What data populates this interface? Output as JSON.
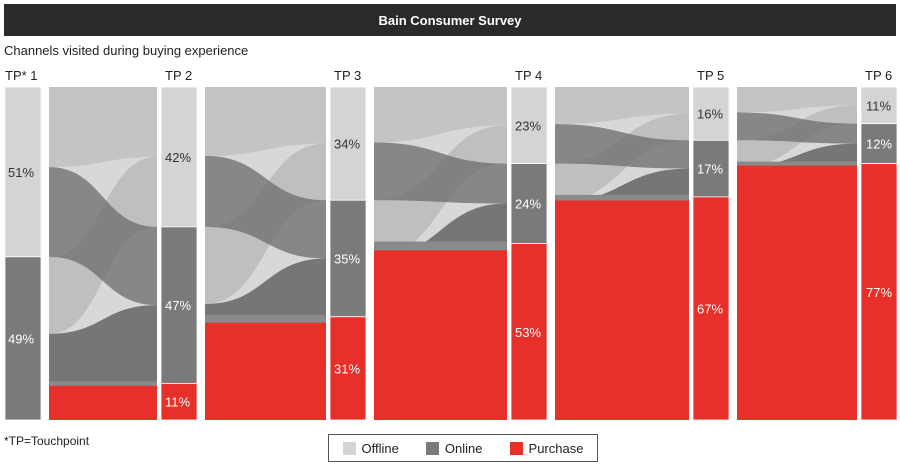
{
  "header": {
    "title": "Bain Consumer Survey",
    "subtitle": "Channels visited during buying experience",
    "footnote": "*TP=Touchpoint"
  },
  "colors": {
    "offline": "#d4d4d4",
    "online": "#7a7a7a",
    "purchase": "#e8302a"
  },
  "chart_data": {
    "type": "alluvial",
    "categories": [
      "TP* 1",
      "TP 2",
      "TP 3",
      "TP 4",
      "TP 5",
      "TP 6"
    ],
    "series": [
      {
        "name": "Offline",
        "values": [
          51,
          42,
          34,
          23,
          16,
          11
        ]
      },
      {
        "name": "Online",
        "values": [
          49,
          47,
          35,
          24,
          17,
          12
        ]
      },
      {
        "name": "Purchase",
        "values": [
          0,
          11,
          31,
          53,
          67,
          77
        ]
      }
    ],
    "data_labels": [
      [
        "51%",
        "49%",
        ""
      ],
      [
        "42%",
        "47%",
        "11%"
      ],
      [
        "34%",
        "35%",
        "31%"
      ],
      [
        "23%",
        "24%",
        "53%"
      ],
      [
        "16%",
        "17%",
        "67%"
      ],
      [
        "11%",
        "12%",
        "77%"
      ]
    ],
    "legend": {
      "position": "bottom",
      "entries": [
        "Offline",
        "Online",
        "Purchase"
      ]
    }
  }
}
